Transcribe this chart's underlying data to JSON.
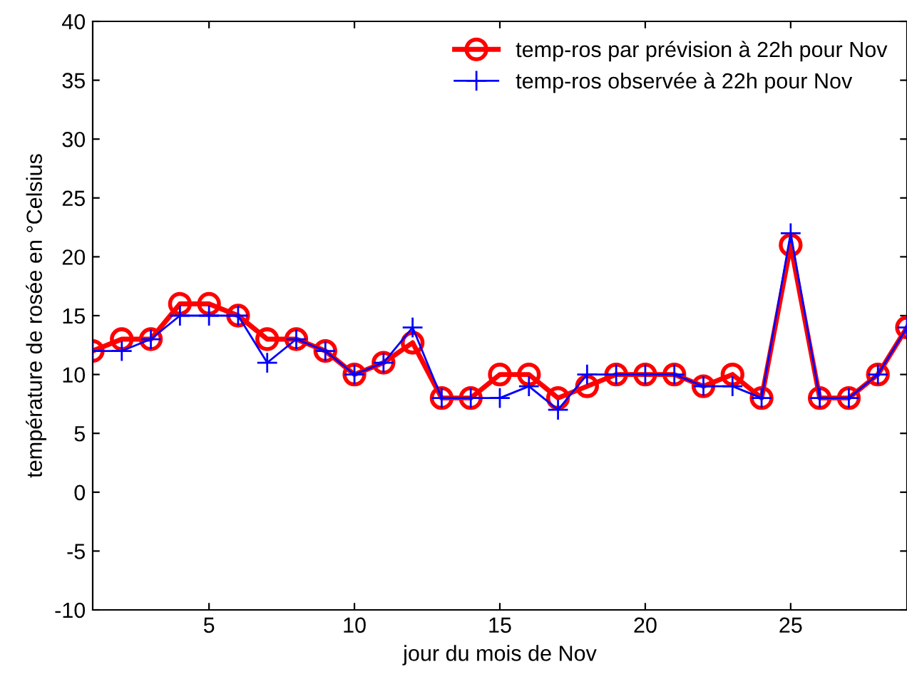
{
  "chart_data": {
    "type": "line",
    "xlabel": "jour du mois de Nov",
    "ylabel": "température de rosée en °Celsius",
    "x": [
      1,
      2,
      3,
      4,
      5,
      6,
      7,
      8,
      9,
      10,
      11,
      12,
      13,
      14,
      15,
      16,
      17,
      18,
      19,
      20,
      21,
      22,
      23,
      24,
      25,
      26,
      27,
      28,
      29
    ],
    "series": [
      {
        "name": "temp-ros par prévision à 22h pour Nov",
        "color": "#ff0000",
        "marker": "circle",
        "values": [
          12,
          13,
          13,
          16,
          16,
          15,
          13,
          13,
          12,
          10,
          11,
          12.7,
          8,
          8,
          10,
          10,
          8,
          9,
          10,
          10,
          10,
          9,
          10,
          8,
          21,
          8,
          8,
          10,
          14
        ]
      },
      {
        "name": "temp-ros observée à 22h pour Nov",
        "color": "#0000ff",
        "marker": "cross",
        "values": [
          12,
          12,
          13,
          15,
          15,
          15,
          11,
          13,
          12,
          10,
          11,
          14,
          8,
          8,
          8,
          9,
          7,
          10,
          10,
          10,
          10,
          9,
          9,
          8,
          22,
          8,
          8,
          10,
          14
        ]
      }
    ],
    "xlim": [
      1,
      29
    ],
    "xticks": [
      5,
      10,
      15,
      20,
      25
    ],
    "ylim": [
      -10,
      40
    ],
    "yticks": [
      -10,
      -5,
      0,
      5,
      10,
      15,
      20,
      25,
      30,
      35,
      40
    ],
    "grid": false,
    "legend": "top right",
    "line_style": "solid"
  }
}
